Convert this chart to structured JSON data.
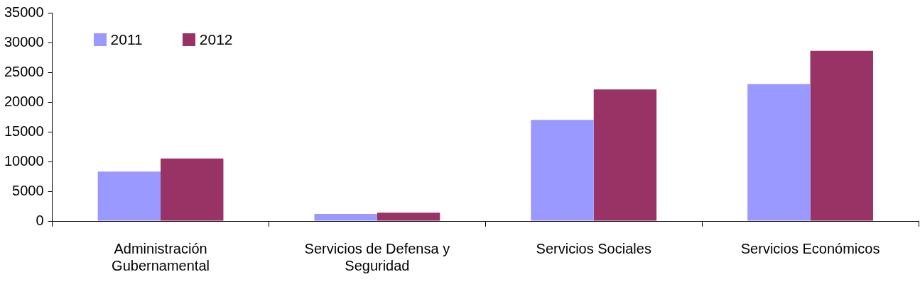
{
  "chart_data": {
    "type": "bar",
    "categories": [
      "Administración Gubernamental",
      "Servicios de Defensa y Seguridad",
      "Servicios Sociales",
      "Servicios Económicos"
    ],
    "series": [
      {
        "name": "2011",
        "color": "#9999ff",
        "values": [
          8300,
          1200,
          17000,
          23000
        ]
      },
      {
        "name": "2012",
        "color": "#993366",
        "values": [
          10500,
          1400,
          22100,
          28600
        ]
      }
    ],
    "ylim": [
      0,
      35000
    ],
    "yticks": [
      0,
      5000,
      10000,
      15000,
      20000,
      25000,
      30000,
      35000
    ],
    "grid": false,
    "legend": "top left"
  }
}
